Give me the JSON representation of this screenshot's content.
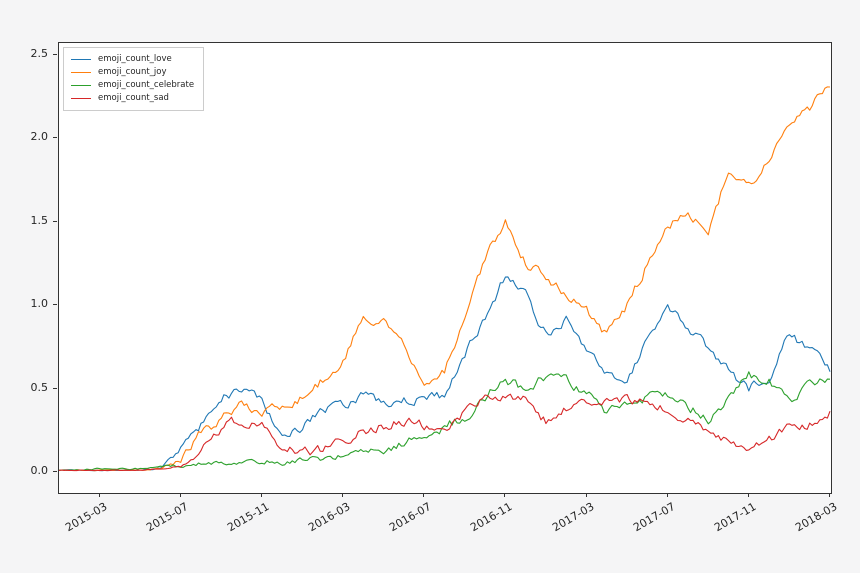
{
  "figure": {
    "background": "#f5f5f6",
    "plot_background": "#ffffff",
    "spine_color": "#333333",
    "tick_label_color": "#262626"
  },
  "chart_data": {
    "type": "line",
    "title": "",
    "xlabel": "",
    "ylabel": "",
    "grid": false,
    "legend_position": "upper left",
    "x": [
      "2015-01",
      "2015-02",
      "2015-03",
      "2015-04",
      "2015-05",
      "2015-06",
      "2015-07",
      "2015-08",
      "2015-09",
      "2015-10",
      "2015-11",
      "2015-12",
      "2016-01",
      "2016-02",
      "2016-03",
      "2016-04",
      "2016-05",
      "2016-06",
      "2016-07",
      "2016-08",
      "2016-09",
      "2016-10",
      "2016-11",
      "2016-12",
      "2017-01",
      "2017-02",
      "2017-03",
      "2017-04",
      "2017-05",
      "2017-06",
      "2017-07",
      "2017-08",
      "2017-09",
      "2017-10",
      "2017-11",
      "2017-12",
      "2018-01",
      "2018-02",
      "2018-03"
    ],
    "series": [
      {
        "name": "emoji_count_love",
        "color": "#1f77b4",
        "values": [
          0.01,
          0.01,
          0.01,
          0.01,
          0.01,
          0.02,
          0.12,
          0.28,
          0.45,
          0.5,
          0.42,
          0.23,
          0.26,
          0.37,
          0.4,
          0.46,
          0.41,
          0.43,
          0.44,
          0.45,
          0.7,
          0.92,
          1.18,
          1.05,
          0.83,
          0.92,
          0.74,
          0.58,
          0.56,
          0.8,
          0.98,
          0.88,
          0.74,
          0.6,
          0.5,
          0.58,
          0.84,
          0.72,
          0.62
        ]
      },
      {
        "name": "emoji_count_joy",
        "color": "#ff7f0e",
        "values": [
          0.01,
          0.01,
          0.01,
          0.01,
          0.01,
          0.02,
          0.07,
          0.24,
          0.31,
          0.41,
          0.37,
          0.4,
          0.44,
          0.55,
          0.65,
          0.93,
          0.92,
          0.78,
          0.55,
          0.6,
          0.9,
          1.27,
          1.5,
          1.25,
          1.18,
          1.05,
          0.97,
          0.82,
          1.0,
          1.25,
          1.46,
          1.58,
          1.42,
          1.8,
          1.72,
          1.9,
          2.05,
          2.18,
          2.33
        ]
      },
      {
        "name": "emoji_count_celebrate",
        "color": "#2ca02c",
        "values": [
          0.01,
          0.01,
          0.02,
          0.02,
          0.02,
          0.03,
          0.04,
          0.05,
          0.05,
          0.06,
          0.07,
          0.05,
          0.08,
          0.08,
          0.1,
          0.15,
          0.13,
          0.17,
          0.2,
          0.27,
          0.33,
          0.45,
          0.55,
          0.5,
          0.58,
          0.55,
          0.47,
          0.35,
          0.42,
          0.45,
          0.46,
          0.4,
          0.31,
          0.45,
          0.58,
          0.55,
          0.4,
          0.52,
          0.56
        ]
      },
      {
        "name": "emoji_count_sad",
        "color": "#d62728",
        "values": [
          0.01,
          0.01,
          0.01,
          0.01,
          0.01,
          0.02,
          0.03,
          0.15,
          0.27,
          0.32,
          0.27,
          0.16,
          0.11,
          0.13,
          0.18,
          0.25,
          0.28,
          0.31,
          0.28,
          0.25,
          0.35,
          0.48,
          0.45,
          0.43,
          0.3,
          0.38,
          0.41,
          0.42,
          0.44,
          0.4,
          0.37,
          0.33,
          0.26,
          0.19,
          0.16,
          0.19,
          0.27,
          0.29,
          0.36
        ]
      }
    ],
    "x_tick_labels": [
      "2015-03",
      "2015-07",
      "2015-11",
      "2016-03",
      "2016-07",
      "2016-11",
      "2017-03",
      "2017-07",
      "2017-11",
      "2018-03"
    ],
    "x_tick_positions": [
      2,
      6,
      10,
      14,
      18,
      22,
      26,
      30,
      34,
      38
    ],
    "y_tick_labels": [
      "0.0",
      "0.5",
      "1.0",
      "1.5",
      "2.0",
      "2.5"
    ],
    "y_tick_values": [
      0.0,
      0.5,
      1.0,
      1.5,
      2.0,
      2.5
    ],
    "ylim": [
      -0.126,
      2.572
    ],
    "xlim_months": [
      0,
      38.05
    ],
    "noise_amplitude": 0.05
  }
}
